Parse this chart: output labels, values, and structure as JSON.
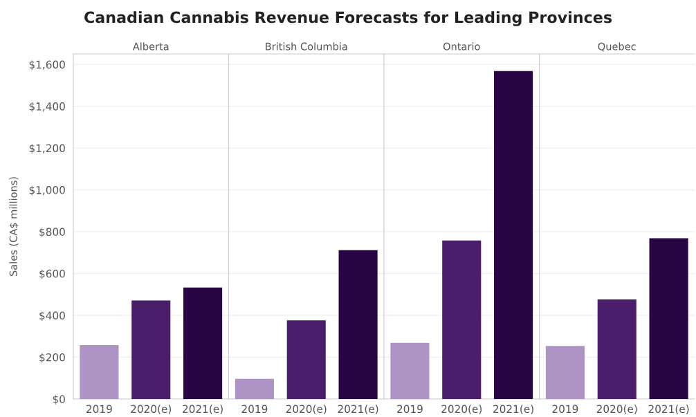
{
  "chart_data": [
    {
      "type": "bar",
      "title": "Alberta",
      "ylabel": "Sales (CA$ millions)",
      "annotations": [
        "Canadian Cannabis Revenue Forecasts for Leading Provinces"
      ],
      "categories": [
        "2019",
        "2020(e)",
        "2021(e)"
      ],
      "values": [
        258,
        471,
        533
      ],
      "colors": [
        "#ae94c4",
        "#4a1e6b",
        "#2a0544"
      ],
      "ylim": [
        0,
        1650
      ],
      "yticks": [
        {
          "value": 0,
          "label": "$0"
        },
        {
          "value": 200,
          "label": "$200"
        },
        {
          "value": 400,
          "label": "$400"
        },
        {
          "value": 600,
          "label": "$600"
        },
        {
          "value": 800,
          "label": "$800"
        },
        {
          "value": 1000,
          "label": "$1,000"
        },
        {
          "value": 1200,
          "label": "$1,200"
        },
        {
          "value": 1400,
          "label": "$1,400"
        },
        {
          "value": 1600,
          "label": "$1,600"
        }
      ],
      "grid": "y"
    },
    {
      "type": "bar",
      "title": "British Columbia",
      "categories": [
        "2019",
        "2020(e)",
        "2021(e)"
      ],
      "values": [
        97,
        376,
        712
      ],
      "colors": [
        "#ae94c4",
        "#4a1e6b",
        "#2a0544"
      ],
      "ylim": [
        0,
        1650
      ],
      "yticks": [
        0,
        200,
        400,
        600,
        800,
        1000,
        1200,
        1400,
        1600
      ],
      "grid": "y",
      "tick_labels": "x"
    },
    {
      "type": "bar",
      "title": "Ontario",
      "categories": [
        "2019",
        "2020(e)",
        "2021(e)"
      ],
      "values": [
        269,
        758,
        1568
      ],
      "colors": [
        "#ae94c4",
        "#4a1e6b",
        "#2a0544"
      ],
      "ylim": [
        0,
        1650
      ],
      "yticks": [
        0,
        200,
        400,
        600,
        800,
        1000,
        1200,
        1400,
        1600
      ],
      "grid": "y",
      "tick_labels": "x"
    },
    {
      "type": "bar",
      "title": "Quebec",
      "categories": [
        "2019",
        "2020(e)",
        "2021(e)"
      ],
      "values": [
        254,
        476,
        769
      ],
      "colors": [
        "#ae94c4",
        "#4a1e6b",
        "#2a0544"
      ],
      "ylim": [
        0,
        1650
      ],
      "yticks": [
        0,
        200,
        400,
        600,
        800,
        1000,
        1200,
        1400,
        1600
      ],
      "grid": "y",
      "tick_labels": "x"
    }
  ]
}
